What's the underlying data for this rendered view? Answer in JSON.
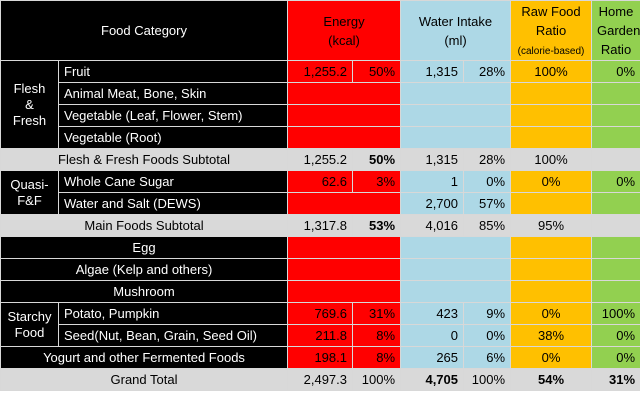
{
  "headers": {
    "category": "Food Category",
    "energy": [
      "Energy",
      "(kcal)"
    ],
    "water": [
      "Water Intake",
      "(ml)"
    ],
    "raw": [
      "Raw Food",
      "Ratio",
      "(calorie-based)"
    ],
    "garden": [
      "Home",
      "Garden",
      "Ratio"
    ]
  },
  "groups": {
    "flesh": [
      "Flesh",
      "&",
      "Fresh"
    ],
    "quasi": [
      "Quasi-",
      "F&F"
    ],
    "starchy": [
      "Starchy",
      "Food"
    ]
  },
  "rows": {
    "fruit": {
      "label": "Fruit",
      "kcal": "1,255.2",
      "kcal_pct": "50%",
      "ml": "1,315",
      "ml_pct": "28%",
      "raw": "100%",
      "garden": "0%"
    },
    "meat": {
      "label": "Animal Meat, Bone, Skin"
    },
    "veg_leaf": {
      "label": "Vegetable (Leaf, Flower, Stem)"
    },
    "veg_root": {
      "label": "Vegetable (Root)"
    },
    "flesh_sub": {
      "label": "Flesh & Fresh Foods Subtotal",
      "kcal": "1,255.2",
      "kcal_pct": "50%",
      "ml": "1,315",
      "ml_pct": "28%",
      "raw": "100%"
    },
    "sugar": {
      "label": "Whole Cane Sugar",
      "kcal": "62.6",
      "kcal_pct": "3%",
      "ml": "1",
      "ml_pct": "0%",
      "raw": "0%",
      "garden": "0%"
    },
    "water_salt": {
      "label": "Water and Salt (DEWS)",
      "ml": "2,700",
      "ml_pct": "57%"
    },
    "main_sub": {
      "label": "Main Foods Subtotal",
      "kcal": "1,317.8",
      "kcal_pct": "53%",
      "ml": "4,016",
      "ml_pct": "85%",
      "raw": "95%"
    },
    "egg": {
      "label": "Egg"
    },
    "algae": {
      "label": "Algae (Kelp and others)"
    },
    "mushroom": {
      "label": "Mushroom"
    },
    "potato": {
      "label": "Potato, Pumpkin",
      "kcal": "769.6",
      "kcal_pct": "31%",
      "ml": "423",
      "ml_pct": "9%",
      "raw": "0%",
      "garden": "100%"
    },
    "seed": {
      "label": "Seed(Nut, Bean, Grain, Seed Oil)",
      "kcal": "211.8",
      "kcal_pct": "8%",
      "ml": "0",
      "ml_pct": "0%",
      "raw": "38%",
      "garden": "0%"
    },
    "yogurt": {
      "label": "Yogurt and other Fermented Foods",
      "kcal": "198.1",
      "kcal_pct": "8%",
      "ml": "265",
      "ml_pct": "6%",
      "raw": "0%",
      "garden": "0%"
    },
    "grand": {
      "label": "Grand Total",
      "kcal": "2,497.3",
      "kcal_pct": "100%",
      "ml": "4,705",
      "ml_pct": "100%",
      "raw": "54%",
      "garden": "31%"
    }
  },
  "colors": {
    "energy": "#ff0000",
    "water": "#add8e6",
    "raw": "#ffc000",
    "garden": "#92d050",
    "label": "#000000",
    "subtotal": "#d9d9d9"
  }
}
